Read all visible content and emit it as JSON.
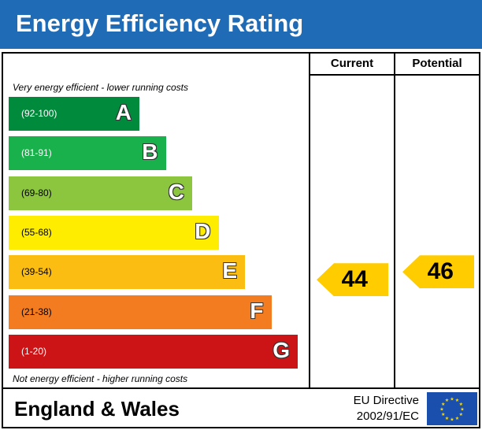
{
  "title": "Energy Efficiency Rating",
  "columns": {
    "current": "Current",
    "potential": "Potential"
  },
  "notes": {
    "top": "Very energy efficient - lower running costs",
    "bottom": "Not energy efficient - higher running costs"
  },
  "footer": {
    "region": "England & Wales",
    "directive_line1": "EU Directive",
    "directive_line2": "2002/91/EC"
  },
  "colors": {
    "header": "#1f6bb5",
    "A": "#008a3c",
    "B": "#19b14b",
    "C": "#8cc63f",
    "D": "#ffed00",
    "E": "#fcbd12",
    "F": "#f47c20",
    "G": "#cc1417",
    "current_arrow": "#ffcc00",
    "potential_arrow": "#ffcc00",
    "eu_flag": "#1b4fae",
    "eu_stars": "#ffdd00"
  },
  "icons": {
    "eu_flag": "eu-flag-icon"
  },
  "chart_data": {
    "type": "bar",
    "title": "Energy Efficiency Rating",
    "bands": [
      {
        "letter": "A",
        "range": "(92-100)",
        "min": 92,
        "max": 100
      },
      {
        "letter": "B",
        "range": "(81-91)",
        "min": 81,
        "max": 91
      },
      {
        "letter": "C",
        "range": "(69-80)",
        "min": 69,
        "max": 80
      },
      {
        "letter": "D",
        "range": "(55-68)",
        "min": 55,
        "max": 68
      },
      {
        "letter": "E",
        "range": "(39-54)",
        "min": 39,
        "max": 54
      },
      {
        "letter": "F",
        "range": "(21-38)",
        "min": 21,
        "max": 38
      },
      {
        "letter": "G",
        "range": "(1-20)",
        "min": 1,
        "max": 20
      }
    ],
    "ratings": {
      "current": {
        "value": 44,
        "band": "E"
      },
      "potential": {
        "value": 46,
        "band": "E"
      }
    }
  }
}
